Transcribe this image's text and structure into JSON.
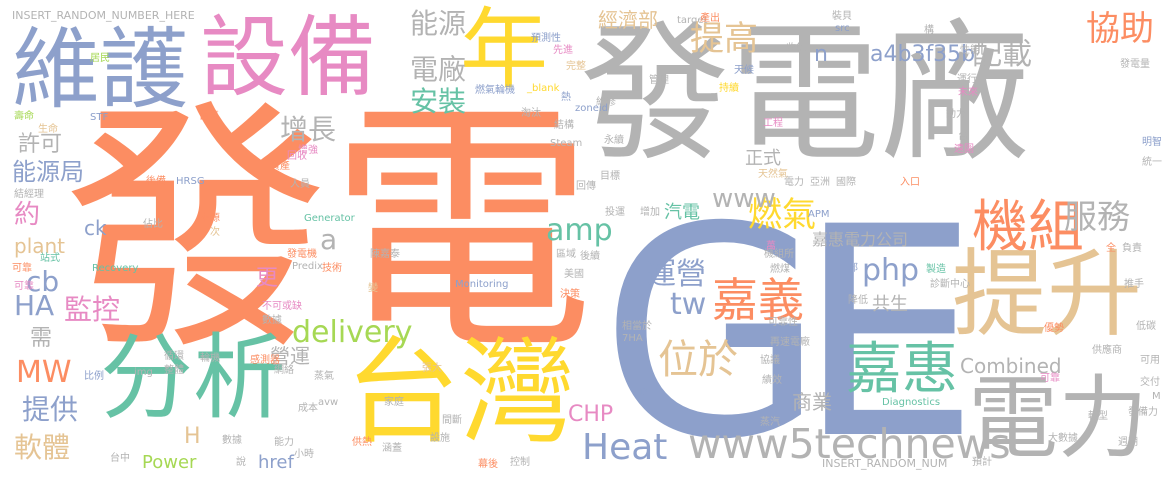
{
  "palette": {
    "orange": "#fc8d62",
    "grey": "#b3b3b3",
    "blue": "#8da0cb",
    "pink": "#e78ac3",
    "yellow": "#ffd92f",
    "green": "#66c2a5",
    "tan": "#e5c494",
    "lime": "#a6d854"
  },
  "words": [
    {
      "text": "GE",
      "color": "#8da0cb"
    },
    {
      "text": "發電",
      "color": "#fc8d62"
    },
    {
      "text": "發電廠",
      "color": "#b3b3b3"
    },
    {
      "text": "維護",
      "color": "#8da0cb"
    },
    {
      "text": "設備",
      "color": "#e78ac3"
    },
    {
      "text": "年",
      "color": "#ffd92f"
    },
    {
      "text": "台灣",
      "color": "#ffd92f"
    },
    {
      "text": "分析",
      "color": "#66c2a5"
    },
    {
      "text": "提升",
      "color": "#e5c494"
    },
    {
      "text": "電力",
      "color": "#b3b3b3"
    },
    {
      "text": "機組",
      "color": "#fc8d62"
    },
    {
      "text": "嘉惠",
      "color": "#66c2a5"
    },
    {
      "text": "嘉義",
      "color": "#fc8d62"
    },
    {
      "text": "www5technews",
      "color": "#b3b3b3"
    },
    {
      "text": "Heat",
      "color": "#8da0cb"
    },
    {
      "text": "delivery",
      "color": "#a6d854"
    },
    {
      "text": "位於",
      "color": "#e5c494"
    },
    {
      "text": "服務",
      "color": "#b3b3b3"
    },
    {
      "text": "提高",
      "color": "#e5c494"
    },
    {
      "text": "協助",
      "color": "#fc8d62"
    },
    {
      "text": "能源",
      "color": "#b3b3b3"
    },
    {
      "text": "配載",
      "color": "#b3b3b3"
    },
    {
      "text": "a4b3f35b",
      "color": "#8da0cb"
    },
    {
      "text": "安裝",
      "color": "#66c2a5"
    },
    {
      "text": "電廠",
      "color": "#b3b3b3"
    },
    {
      "text": "燃氣",
      "color": "#ffd92f"
    },
    {
      "text": "amp",
      "color": "#66c2a5"
    },
    {
      "text": "php",
      "color": "#8da0cb"
    },
    {
      "text": "tw",
      "color": "#8da0cb"
    },
    {
      "text": "運營",
      "color": "#8da0cb"
    },
    {
      "text": "增長",
      "color": "#b3b3b3"
    },
    {
      "text": "監控",
      "color": "#e78ac3"
    },
    {
      "text": "HA",
      "color": "#8da0cb"
    },
    {
      "text": "cb",
      "color": "#8da0cb"
    },
    {
      "text": "MW",
      "color": "#fc8d62"
    },
    {
      "text": "提供",
      "color": "#8da0cb"
    },
    {
      "text": "軟體",
      "color": "#e5c494"
    },
    {
      "text": "能源局",
      "color": "#8da0cb"
    },
    {
      "text": "許可",
      "color": "#b3b3b3"
    },
    {
      "text": "約",
      "color": "#e78ac3"
    },
    {
      "text": "plant",
      "color": "#e5c494"
    },
    {
      "text": "需",
      "color": "#b3b3b3"
    },
    {
      "text": "ck",
      "color": "#8da0cb"
    },
    {
      "text": "www",
      "color": "#b3b3b3"
    },
    {
      "text": "正式",
      "color": "#b3b3b3"
    },
    {
      "text": "嘉惠電力公司",
      "color": "#b3b3b3"
    },
    {
      "text": "汽電",
      "color": "#66c2a5"
    },
    {
      "text": "a",
      "color": "#b3b3b3"
    },
    {
      "text": "更",
      "color": "#e78ac3"
    },
    {
      "text": "營運",
      "color": "#b3b3b3"
    },
    {
      "text": "商業",
      "color": "#b3b3b3"
    },
    {
      "text": "共生",
      "color": "#b3b3b3"
    },
    {
      "text": "CHP",
      "color": "#e78ac3"
    },
    {
      "text": "Combined",
      "color": "#b3b3b3"
    },
    {
      "text": "Power",
      "color": "#a6d854"
    },
    {
      "text": "href",
      "color": "#8da0cb"
    },
    {
      "text": "H",
      "color": "#e5c494"
    },
    {
      "text": "n",
      "color": "#8da0cb"
    },
    {
      "text": "經濟部",
      "color": "#e5c494"
    },
    {
      "text": "INSERT_RANDOM_NUMBER_HERE",
      "color": "#b3b3b3"
    },
    {
      "text": "INSERT_RANDOM_NUM",
      "color": "#b3b3b3"
    },
    {
      "text": "預測性",
      "color": "#8da0cb"
    },
    {
      "text": "完整",
      "color": "#e5c494"
    },
    {
      "text": "先進",
      "color": "#e78ac3"
    },
    {
      "text": "燃氣輪機",
      "color": "#8da0cb"
    },
    {
      "text": "_blank",
      "color": "#ffd92f"
    },
    {
      "text": "zoneid",
      "color": "#8da0cb"
    },
    {
      "text": "Steam",
      "color": "#b3b3b3"
    },
    {
      "text": "淘汰",
      "color": "#b3b3b3"
    },
    {
      "text": "熱",
      "color": "#8da0cb"
    },
    {
      "text": "結構",
      "color": "#b3b3b3"
    },
    {
      "text": "居民",
      "color": "#a6d854"
    },
    {
      "text": "壽命",
      "color": "#a6d854"
    },
    {
      "text": "生命",
      "color": "#e5c494"
    },
    {
      "text": "首頁",
      "color": "#fc8d62"
    },
    {
      "text": "STF",
      "color": "#8da0cb"
    },
    {
      "text": "增強",
      "color": "#e78ac3"
    },
    {
      "text": "回收",
      "color": "#e78ac3"
    },
    {
      "text": "後備",
      "color": "#fc8d62"
    },
    {
      "text": "HRSG",
      "color": "#8da0cb"
    },
    {
      "text": "資產",
      "color": "#fc8d62"
    },
    {
      "text": "人員",
      "color": "#b3b3b3"
    },
    {
      "text": "維修",
      "color": "#b3b3b3"
    },
    {
      "text": "持續",
      "color": "#ffd92f"
    },
    {
      "text": "永續",
      "color": "#b3b3b3"
    },
    {
      "text": "管理",
      "color": "#b3b3b3"
    },
    {
      "text": "天候",
      "color": "#8da0cb"
    },
    {
      "text": "工程",
      "color": "#e78ac3"
    },
    {
      "text": "收集",
      "color": "#b3b3b3"
    },
    {
      "text": "src",
      "color": "#8da0cb"
    },
    {
      "text": "target",
      "color": "#b3b3b3"
    },
    {
      "text": "裝貝",
      "color": "#b3b3b3"
    },
    {
      "text": "構",
      "color": "#b3b3b3"
    },
    {
      "text": "性能",
      "color": "#b3b3b3"
    },
    {
      "text": "運行",
      "color": "#b3b3b3"
    },
    {
      "text": "發電量",
      "color": "#b3b3b3"
    },
    {
      "text": "未來",
      "color": "#e78ac3"
    },
    {
      "text": "動力",
      "color": "#b3b3b3"
    },
    {
      "text": "明智",
      "color": "#8da0cb"
    },
    {
      "text": "遠圍",
      "color": "#e78ac3"
    },
    {
      "text": "統一",
      "color": "#b3b3b3"
    },
    {
      "text": "入口",
      "color": "#fc8d62"
    },
    {
      "text": "台",
      "color": "#b3b3b3"
    },
    {
      "text": "天然氣",
      "color": "#e5c494"
    },
    {
      "text": "亞洲",
      "color": "#b3b3b3"
    },
    {
      "text": "國際",
      "color": "#b3b3b3"
    },
    {
      "text": "電力",
      "color": "#b3b3b3"
    },
    {
      "text": "目標",
      "color": "#b3b3b3"
    },
    {
      "text": "回傳",
      "color": "#b3b3b3"
    },
    {
      "text": "投運",
      "color": "#b3b3b3"
    },
    {
      "text": "增加",
      "color": "#b3b3b3"
    },
    {
      "text": "APM",
      "color": "#8da0cb"
    },
    {
      "text": "Generator",
      "color": "#66c2a5"
    },
    {
      "text": "來源",
      "color": "#fc8d62"
    },
    {
      "text": "次",
      "color": "#e5c494"
    },
    {
      "text": "佔比",
      "color": "#b3b3b3"
    },
    {
      "text": "結經理",
      "color": "#b3b3b3"
    },
    {
      "text": "站式",
      "color": "#66c2a5"
    },
    {
      "text": "發電機",
      "color": "#fc8d62"
    },
    {
      "text": "陳嘉泰",
      "color": "#b3b3b3"
    },
    {
      "text": "區域",
      "color": "#b3b3b3"
    },
    {
      "text": "後續",
      "color": "#b3b3b3"
    },
    {
      "text": "機組所",
      "color": "#b3b3b3"
    },
    {
      "text": "燃煤",
      "color": "#b3b3b3"
    },
    {
      "text": "萬",
      "color": "#e78ac3"
    },
    {
      "text": "全",
      "color": "#fc8d62"
    },
    {
      "text": "負責",
      "color": "#b3b3b3"
    },
    {
      "text": "Predix",
      "color": "#b3b3b3"
    },
    {
      "text": "技術",
      "color": "#fc8d62"
    },
    {
      "text": "Recovery",
      "color": "#66c2a5"
    },
    {
      "text": "美國",
      "color": "#b3b3b3"
    },
    {
      "text": "部",
      "color": "#8da0cb"
    },
    {
      "text": "製造",
      "color": "#66c2a5"
    },
    {
      "text": "可靠",
      "color": "#fc8d62"
    },
    {
      "text": "Monitoring",
      "color": "#8da0cb"
    },
    {
      "text": "決策",
      "color": "#fc8d62"
    },
    {
      "text": "診斷中心",
      "color": "#b3b3b3"
    },
    {
      "text": "推手",
      "color": "#b3b3b3"
    },
    {
      "text": "降低",
      "color": "#b3b3b3"
    },
    {
      "text": "變",
      "color": "#e5c494"
    },
    {
      "text": "不可或缺",
      "color": "#e78ac3"
    },
    {
      "text": "數據",
      "color": "#b3b3b3"
    },
    {
      "text": "相當於",
      "color": "#b3b3b3"
    },
    {
      "text": "可靠性",
      "color": "#b3b3b3"
    },
    {
      "text": "優勢",
      "color": "#fc8d62"
    },
    {
      "text": "低碳",
      "color": "#b3b3b3"
    },
    {
      "text": "7HA",
      "color": "#b3b3b3"
    },
    {
      "text": "再速電廠",
      "color": "#b3b3b3"
    },
    {
      "text": "供應商",
      "color": "#b3b3b3"
    },
    {
      "text": "循環",
      "color": "#b3b3b3"
    },
    {
      "text": "輪機",
      "color": "#b3b3b3"
    },
    {
      "text": "感測器",
      "color": "#fc8d62"
    },
    {
      "text": "網絡",
      "color": "#b3b3b3"
    },
    {
      "text": "整體",
      "color": "#b3b3b3"
    },
    {
      "text": "比例",
      "color": "#8da0cb"
    },
    {
      "text": "img",
      "color": "#b3b3b3"
    },
    {
      "text": "張大",
      "color": "#e5c494"
    },
    {
      "text": "蒸氣",
      "color": "#b3b3b3"
    },
    {
      "text": "協議",
      "color": "#b3b3b3"
    },
    {
      "text": "可用",
      "color": "#b3b3b3"
    },
    {
      "text": "交付",
      "color": "#b3b3b3"
    },
    {
      "text": "M",
      "color": "#b3b3b3"
    },
    {
      "text": "績效",
      "color": "#b3b3b3"
    },
    {
      "text": "D",
      "color": "#8da0cb"
    },
    {
      "text": "成本",
      "color": "#b3b3b3"
    },
    {
      "text": "avw",
      "color": "#b3b3b3"
    },
    {
      "text": "家庭",
      "color": "#b3b3b3"
    },
    {
      "text": "間斷",
      "color": "#b3b3b3"
    },
    {
      "text": "蒸汽",
      "color": "#b3b3b3"
    },
    {
      "text": "Diagnostics",
      "color": "#66c2a5"
    },
    {
      "text": "轉型",
      "color": "#b3b3b3"
    },
    {
      "text": "發備力",
      "color": "#b3b3b3"
    },
    {
      "text": "大數據",
      "color": "#b3b3b3"
    },
    {
      "text": "週期",
      "color": "#b3b3b3"
    },
    {
      "text": "數據",
      "color": "#b3b3b3"
    },
    {
      "text": "能力",
      "color": "#b3b3b3"
    },
    {
      "text": "小時",
      "color": "#b3b3b3"
    },
    {
      "text": "供熱",
      "color": "#fc8d62"
    },
    {
      "text": "設施",
      "color": "#b3b3b3"
    },
    {
      "text": "涵蓋",
      "color": "#b3b3b3"
    },
    {
      "text": "台中",
      "color": "#b3b3b3"
    },
    {
      "text": "說",
      "color": "#b3b3b3"
    },
    {
      "text": "幕後",
      "color": "#fc8d62"
    },
    {
      "text": "控制",
      "color": "#b3b3b3"
    },
    {
      "text": "預計",
      "color": "#b3b3b3"
    },
    {
      "text": "產出",
      "color": "#fc8d62"
    },
    {
      "text": "可靠",
      "color": "#e78ac3"
    },
    {
      "text": "可靠",
      "color": "#e78ac3"
    }
  ]
}
